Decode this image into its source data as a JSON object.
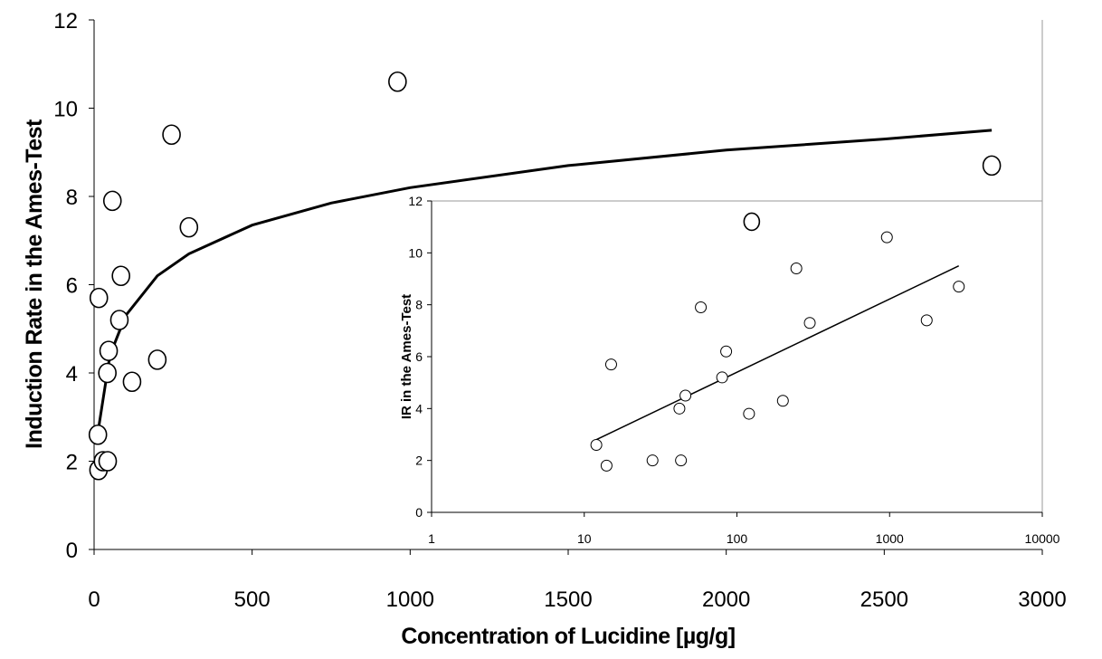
{
  "chart_data": [
    {
      "type": "scatter",
      "title": "",
      "xlabel": "Concentration of Lucidine [µg/g]",
      "ylabel": "Induction Rate in the Ames-Test",
      "xlim": [
        0,
        3000
      ],
      "ylim": [
        0,
        12
      ],
      "x_ticks": [
        "0",
        "500",
        "1000",
        "1500",
        "2000",
        "2500",
        "3000"
      ],
      "y_ticks": [
        "0",
        "2",
        "4",
        "6",
        "8",
        "10",
        "12"
      ],
      "grid": false,
      "legend": "none",
      "points": [
        {
          "x": 12,
          "y": 2.6
        },
        {
          "x": 14,
          "y": 1.8
        },
        {
          "x": 15,
          "y": 5.7
        },
        {
          "x": 28,
          "y": 2.0
        },
        {
          "x": 42,
          "y": 4.0
        },
        {
          "x": 43,
          "y": 2.0
        },
        {
          "x": 46,
          "y": 4.5
        },
        {
          "x": 58,
          "y": 7.9
        },
        {
          "x": 80,
          "y": 5.2
        },
        {
          "x": 85,
          "y": 6.2
        },
        {
          "x": 120,
          "y": 3.8
        },
        {
          "x": 200,
          "y": 4.3
        },
        {
          "x": 245,
          "y": 9.4
        },
        {
          "x": 300,
          "y": 7.3
        },
        {
          "x": 960,
          "y": 10.6
        },
        {
          "x": 2840,
          "y": 8.7
        }
      ],
      "trendline": {
        "type": "log",
        "points": [
          [
            12,
            2.65
          ],
          [
            50,
            4.4
          ],
          [
            100,
            5.3
          ],
          [
            200,
            6.2
          ],
          [
            300,
            6.7
          ],
          [
            500,
            7.35
          ],
          [
            750,
            7.85
          ],
          [
            1000,
            8.2
          ],
          [
            1500,
            8.7
          ],
          [
            2000,
            9.05
          ],
          [
            2500,
            9.3
          ],
          [
            2840,
            9.5
          ]
        ]
      }
    },
    {
      "type": "scatter",
      "title": "",
      "xlabel": "",
      "ylabel": "IR in the Ames-Test",
      "xscale": "log",
      "xlim": [
        1,
        10000
      ],
      "ylim": [
        0,
        12
      ],
      "x_ticks": [
        "1",
        "10",
        "100",
        "1000",
        "10000"
      ],
      "y_ticks": [
        "0",
        "2",
        "4",
        "6",
        "8",
        "10",
        "12"
      ],
      "grid": false,
      "legend": "none",
      "points": [
        {
          "x": 12,
          "y": 2.6
        },
        {
          "x": 14,
          "y": 1.8
        },
        {
          "x": 15,
          "y": 5.7
        },
        {
          "x": 28,
          "y": 2.0
        },
        {
          "x": 42,
          "y": 4.0
        },
        {
          "x": 43,
          "y": 2.0
        },
        {
          "x": 46,
          "y": 4.5
        },
        {
          "x": 58,
          "y": 7.9
        },
        {
          "x": 80,
          "y": 5.2
        },
        {
          "x": 85,
          "y": 6.2
        },
        {
          "x": 120,
          "y": 3.8
        },
        {
          "x": 125,
          "y": 11.2
        },
        {
          "x": 200,
          "y": 4.3
        },
        {
          "x": 245,
          "y": 9.4
        },
        {
          "x": 300,
          "y": 7.3
        },
        {
          "x": 960,
          "y": 10.6
        },
        {
          "x": 1750,
          "y": 7.4
        },
        {
          "x": 2840,
          "y": 8.7
        }
      ],
      "trendline": {
        "type": "linear-on-log-x",
        "points": [
          [
            12,
            2.8
          ],
          [
            2840,
            9.5
          ]
        ]
      }
    }
  ]
}
